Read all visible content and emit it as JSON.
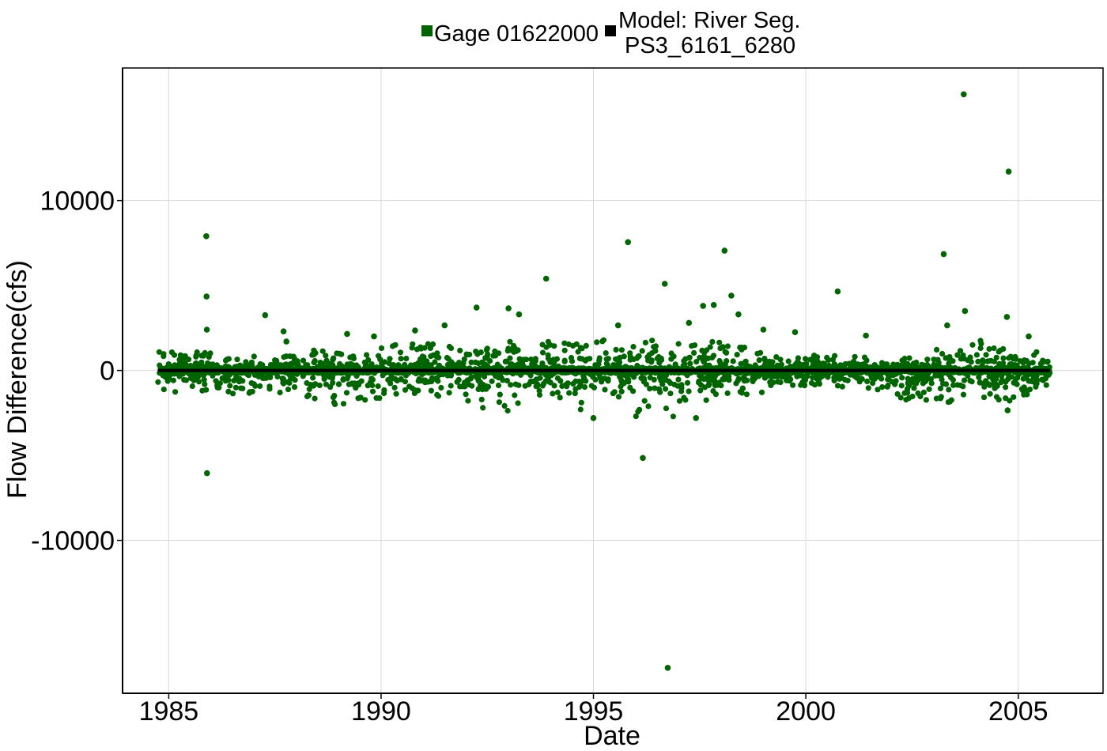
{
  "chart_data": {
    "type": "scatter",
    "title": "",
    "xlabel": "Date",
    "ylabel": "Flow Difference(cfs)",
    "xlim": [
      "1983-12-01",
      "2006-12-31"
    ],
    "ylim": [
      -19000,
      17800
    ],
    "x_ticks": [
      "1985",
      "1990",
      "1995",
      "2000",
      "2005"
    ],
    "y_ticks": [
      -10000,
      0,
      10000
    ],
    "y_tick_labels": [
      "-10000",
      "0",
      "10000"
    ],
    "grid": true,
    "legend_position": "top",
    "colors": {
      "gage": "#006400",
      "model": "#000000"
    },
    "legend": [
      {
        "name": "Gage 01622000",
        "color": "#006400"
      },
      {
        "name_lines": [
          "Model: River Seg.",
          "PS3_6161_6280"
        ],
        "color": "#000000"
      }
    ],
    "series": [
      {
        "name": "Gage 01622000",
        "points": [
          [
            "1985-11-20",
            7900
          ],
          [
            "1985-11-22",
            4350
          ],
          [
            "1985-11-25",
            2400
          ],
          [
            "1985-11-26",
            -6050
          ],
          [
            "1987-04-10",
            3250
          ],
          [
            "1987-09-15",
            2300
          ],
          [
            "1987-10-10",
            1700
          ],
          [
            "1989-03-15",
            2150
          ],
          [
            "1989-11-01",
            2000
          ],
          [
            "1990-10-20",
            2350
          ],
          [
            "1991-07-01",
            2650
          ],
          [
            "1992-04-01",
            3700
          ],
          [
            "1993-01-01",
            3650
          ],
          [
            "1993-04-01",
            3300
          ],
          [
            "1993-11-20",
            5400
          ],
          [
            "1995-01-01",
            -2800
          ],
          [
            "1995-08-01",
            2650
          ],
          [
            "1995-10-25",
            7550
          ],
          [
            "1996-03-01",
            -5150
          ],
          [
            "1996-09-05",
            5100
          ],
          [
            "1996-10-01",
            -17500
          ],
          [
            "1997-04-01",
            2800
          ],
          [
            "1997-06-01",
            -2800
          ],
          [
            "1997-08-01",
            3800
          ],
          [
            "1997-11-01",
            3850
          ],
          [
            "1998-02-01",
            7050
          ],
          [
            "1998-04-01",
            4400
          ],
          [
            "1998-06-01",
            3300
          ],
          [
            "1999-01-01",
            2400
          ],
          [
            "1999-10-01",
            2250
          ],
          [
            "2000-10-01",
            4650
          ],
          [
            "2001-06-01",
            2050
          ],
          [
            "2003-04-01",
            6850
          ],
          [
            "2003-05-01",
            2650
          ],
          [
            "2003-09-20",
            16250
          ],
          [
            "2003-10-01",
            3500
          ],
          [
            "2004-09-25",
            3150
          ],
          [
            "2004-10-01",
            -2350
          ],
          [
            "2004-10-10",
            11700
          ],
          [
            "2005-04-01",
            2000
          ]
        ],
        "dense_daily_band": [
          {
            "from": "1984-10-01",
            "to": "1985-12-31",
            "min": -1400,
            "max": 1100
          },
          {
            "from": "1986-01-01",
            "to": "1986-12-31",
            "min": -1500,
            "max": 700
          },
          {
            "from": "1987-01-01",
            "to": "1987-12-31",
            "min": -1300,
            "max": 900
          },
          {
            "from": "1988-01-01",
            "to": "1988-12-31",
            "min": -2000,
            "max": 1300
          },
          {
            "from": "1989-01-01",
            "to": "1989-12-31",
            "min": -2000,
            "max": 1000
          },
          {
            "from": "1990-01-01",
            "to": "1990-12-31",
            "min": -1400,
            "max": 1600
          },
          {
            "from": "1991-01-01",
            "to": "1991-12-31",
            "min": -1600,
            "max": 1800
          },
          {
            "from": "1992-01-01",
            "to": "1992-12-31",
            "min": -2500,
            "max": 1300
          },
          {
            "from": "1993-01-01",
            "to": "1993-12-31",
            "min": -2100,
            "max": 1700
          },
          {
            "from": "1994-01-01",
            "to": "1994-12-31",
            "min": -2300,
            "max": 1600
          },
          {
            "from": "1995-01-01",
            "to": "1995-12-31",
            "min": -1600,
            "max": 1900
          },
          {
            "from": "1996-01-01",
            "to": "1996-12-31",
            "min": -2900,
            "max": 1800
          },
          {
            "from": "1997-01-01",
            "to": "1997-12-31",
            "min": -2000,
            "max": 1700
          },
          {
            "from": "1998-01-01",
            "to": "1998-12-31",
            "min": -1500,
            "max": 1500
          },
          {
            "from": "1999-01-01",
            "to": "1999-12-31",
            "min": -900,
            "max": 800
          },
          {
            "from": "2000-01-01",
            "to": "2000-12-31",
            "min": -1100,
            "max": 900
          },
          {
            "from": "2001-01-01",
            "to": "2001-12-31",
            "min": -1200,
            "max": 900
          },
          {
            "from": "2002-01-01",
            "to": "2002-12-31",
            "min": -1800,
            "max": 800
          },
          {
            "from": "2003-01-01",
            "to": "2003-12-31",
            "min": -1900,
            "max": 1800
          },
          {
            "from": "2004-01-01",
            "to": "2004-12-31",
            "min": -1900,
            "max": 1900
          },
          {
            "from": "2005-01-01",
            "to": "2005-10-01",
            "min": -1500,
            "max": 1300
          }
        ]
      },
      {
        "name": "Model: River Seg. PS3_6161_6280",
        "type": "line",
        "points": [
          [
            "1984-10-01",
            0
          ],
          [
            "2005-10-01",
            0
          ]
        ]
      }
    ]
  }
}
